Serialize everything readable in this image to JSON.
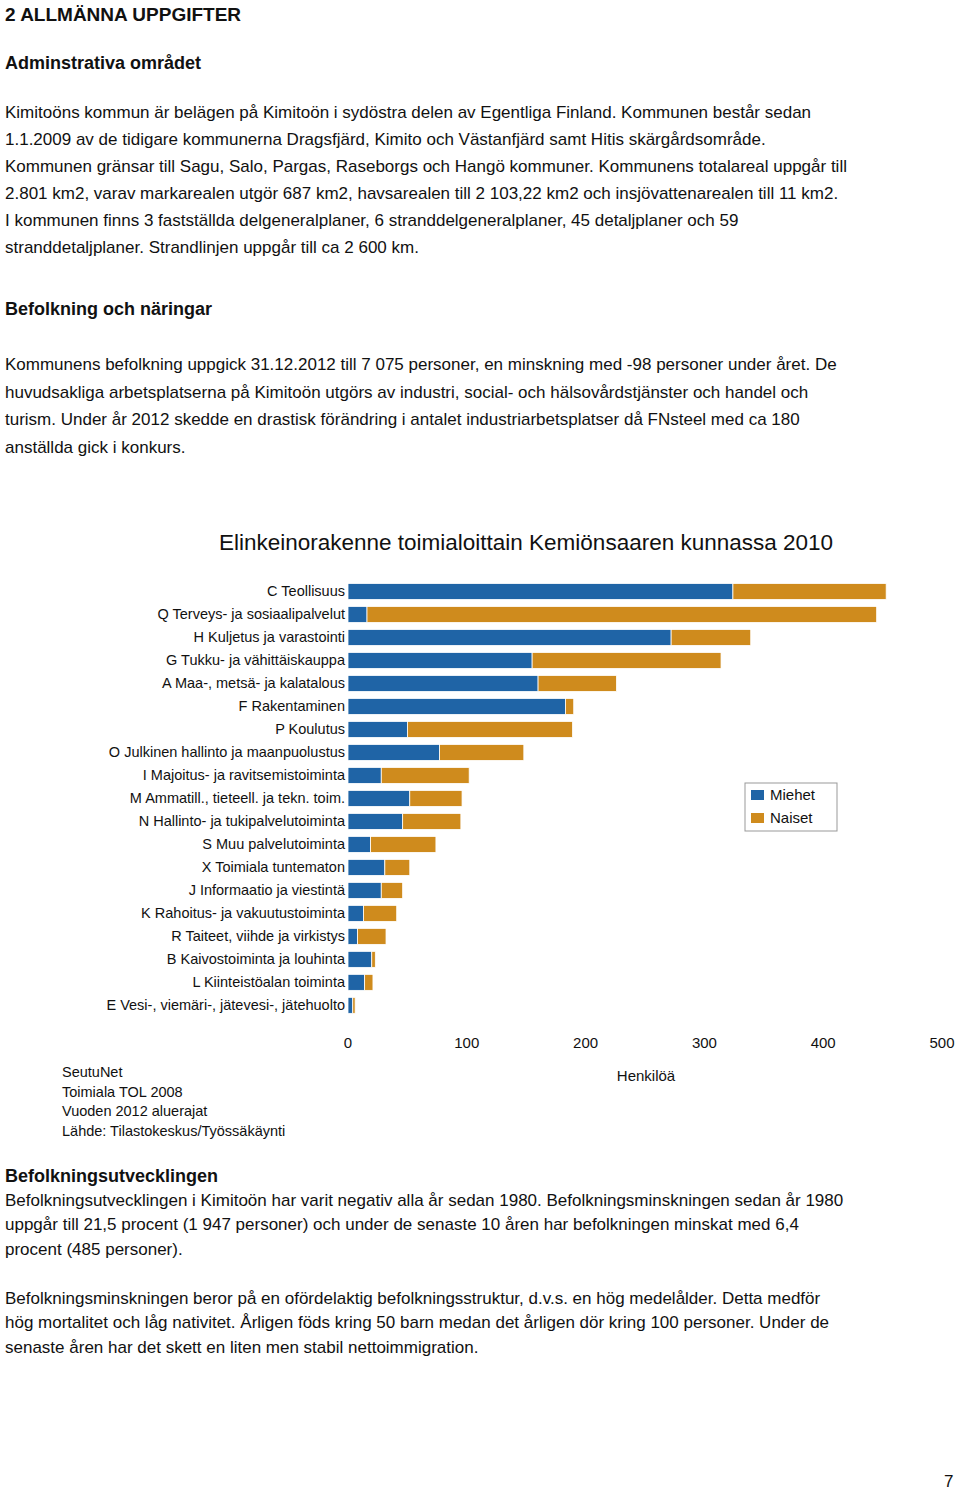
{
  "document": {
    "title": "2 ALLMÄNNA UPPGIFTER",
    "sections": [
      {
        "heading": "Adminstrativa området",
        "paragraphs": [
          [
            "Kimitoöns kommun är belägen på Kimitoön i sydöstra delen av Egentliga Finland. Kommunen består sedan",
            "1.1.2009 av de tidigare kommunerna Dragsfjärd, Kimito och Västanfjärd samt Hitis skärgårdsområde.",
            "Kommunen gränsar till Sagu, Salo, Pargas, Raseborgs och Hangö kommuner. Kommunens totalareal uppgår till",
            "2.801 km2, varav markarealen utgör 687 km2, havsarealen till 2 103,22 km2 och insjövattenarealen till 11 km2.",
            "I kommunen finns 3 fastställda delgeneralplaner, 6 stranddelgeneralplaner, 45 detaljplaner och 59",
            "stranddetaljplaner. Strandlinjen uppgår till ca 2 600 km."
          ]
        ]
      },
      {
        "heading": "Befolkning och näringar",
        "paragraphs": [
          [
            "Kommunens befolkning uppgick 31.12.2012 till 7 075 personer, en minskning med -98 personer under året. De",
            "huvudsakliga arbetsplatserna på Kimitoön utgörs av industri, social- och hälsovårdstjänster och handel och",
            "turism. Under år 2012 skedde en drastisk förändring i antalet industriarbetsplatser då FNsteel med ca 180",
            "anställda gick i konkurs."
          ]
        ]
      },
      {
        "heading": "Befolkningsutvecklingen",
        "paragraphs": [
          [
            "Befolkningsutvecklingen i Kimitoön har varit negativ alla år sedan 1980.  Befolkningsminskningen sedan år 1980",
            "uppgår till 21,5 procent (1 947 personer) och under de senaste 10 åren har befolkningen minskat med 6,4",
            "procent (485 personer)."
          ],
          [
            "Befolkningsminskningen beror på en ofördelaktig befolkningsstruktur, d.v.s. en hög medelålder. Detta medför",
            "hög mortalitet och låg nativitet. Årligen föds kring 50 barn medan det årligen dör kring 100 personer. Under de",
            "senaste åren har det skett en liten men stabil nettoimmigration."
          ]
        ]
      }
    ],
    "page_number": "7"
  },
  "chart_data": {
    "type": "bar",
    "title": "Elinkeinorakenne toimialoittain Kemiönsaaren kunnassa 2010",
    "orientation": "horizontal",
    "stacked": true,
    "grid": false,
    "legend": "right",
    "categories": [
      "C Teollisuus",
      "Q Terveys- ja sosiaalipalvelut",
      "H Kuljetus ja varastointi",
      "G Tukku- ja vähittäiskauppa",
      "A Maa-, metsä- ja kalatalous",
      "F Rakentaminen",
      "P Koulutus",
      "O Julkinen hallinto ja maanpuolustus",
      "I Majoitus- ja ravitsemistoiminta",
      "M Ammatill., tieteell. ja tekn. toim.",
      "N Hallinto- ja tukipalvelutoiminta",
      "S Muu palvelutoiminta",
      "X Toimiala tuntematon",
      "J Informaatio ja viestintä",
      "K Rahoitus- ja vakuutustoiminta",
      "R Taiteet, viihde ja virkistys",
      "B Kaivostoiminta ja louhinta",
      "L Kiinteistöalan toiminta",
      "E Vesi-, viemäri-, jätevesi-, jätehuolto"
    ],
    "series": [
      {
        "name": "Miehet",
        "color": "#1f64a6",
        "values": [
          324,
          16,
          272,
          155,
          160,
          183,
          50,
          77,
          28,
          52,
          46,
          19,
          31,
          28,
          13,
          8,
          20,
          14,
          4
        ]
      },
      {
        "name": "Naiset",
        "color": "#cf8b1d",
        "values": [
          129,
          429,
          67,
          159,
          66,
          7,
          139,
          71,
          74,
          44,
          49,
          55,
          21,
          18,
          28,
          24,
          3,
          7,
          2
        ]
      }
    ],
    "xlim": [
      0,
      500
    ],
    "xticks": [
      0,
      100,
      200,
      300,
      400,
      500
    ],
    "xlabel": "Henkilöä",
    "source": [
      "SeutuNet",
      "Toimiala TOL 2008",
      "Vuoden 2012 aluerajat",
      "Lähde: Tilastokeskus/Työssäkäynti"
    ]
  }
}
